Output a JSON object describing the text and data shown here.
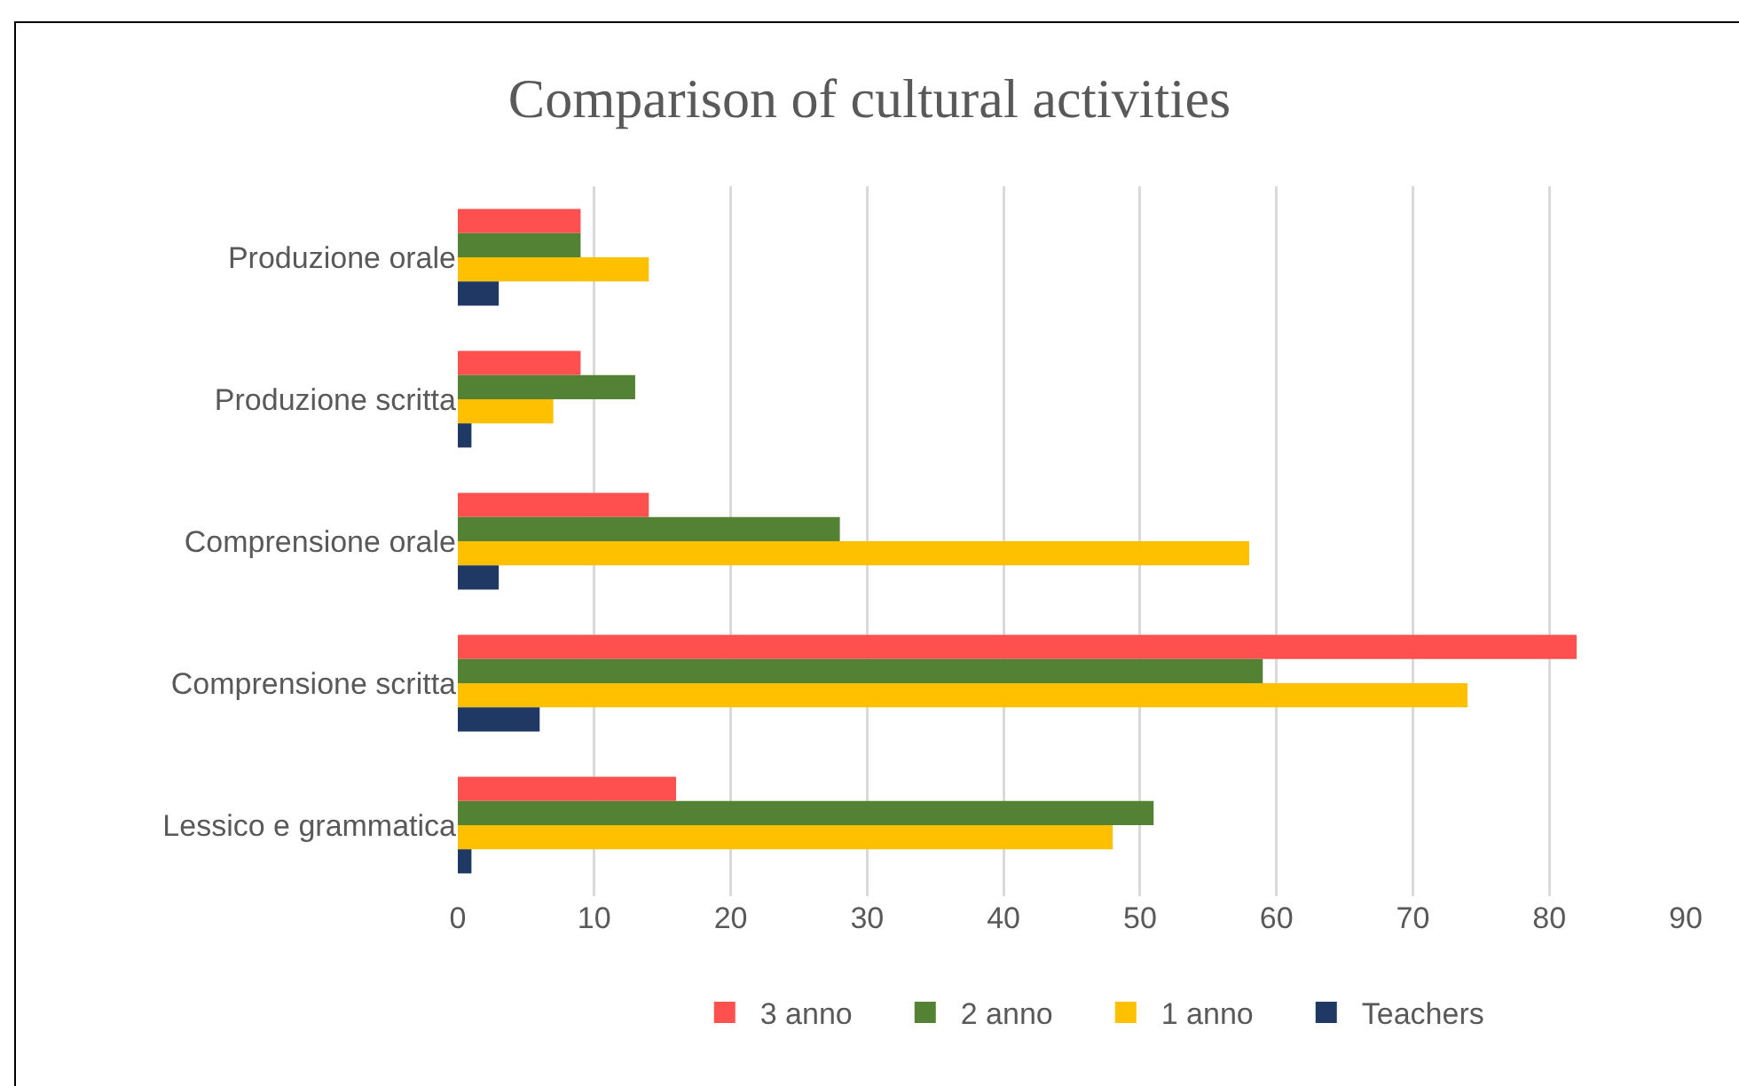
{
  "chart_data": {
    "type": "bar",
    "orientation": "horizontal",
    "title": "Comparison of cultural activities",
    "categories": [
      "Produzione orale",
      "Produzione scritta",
      "Comprensione orale",
      "Comprensione scritta",
      "Lessico e grammatica"
    ],
    "series": [
      {
        "name": "3 anno",
        "color": "#ff5050",
        "values": [
          9,
          9,
          14,
          82,
          16
        ]
      },
      {
        "name": "2 anno",
        "color": "#548235",
        "values": [
          9,
          13,
          28,
          59,
          51
        ]
      },
      {
        "name": "1 anno",
        "color": "#ffc000",
        "values": [
          14,
          7,
          58,
          74,
          48
        ]
      },
      {
        "name": "Teachers",
        "color": "#203864",
        "values": [
          3,
          1,
          3,
          6,
          1
        ]
      }
    ],
    "xlim": [
      0,
      90
    ],
    "xticks": [
      0,
      10,
      20,
      30,
      40,
      50,
      60,
      70,
      80,
      90
    ],
    "grid": "x",
    "legend": "bottom"
  }
}
